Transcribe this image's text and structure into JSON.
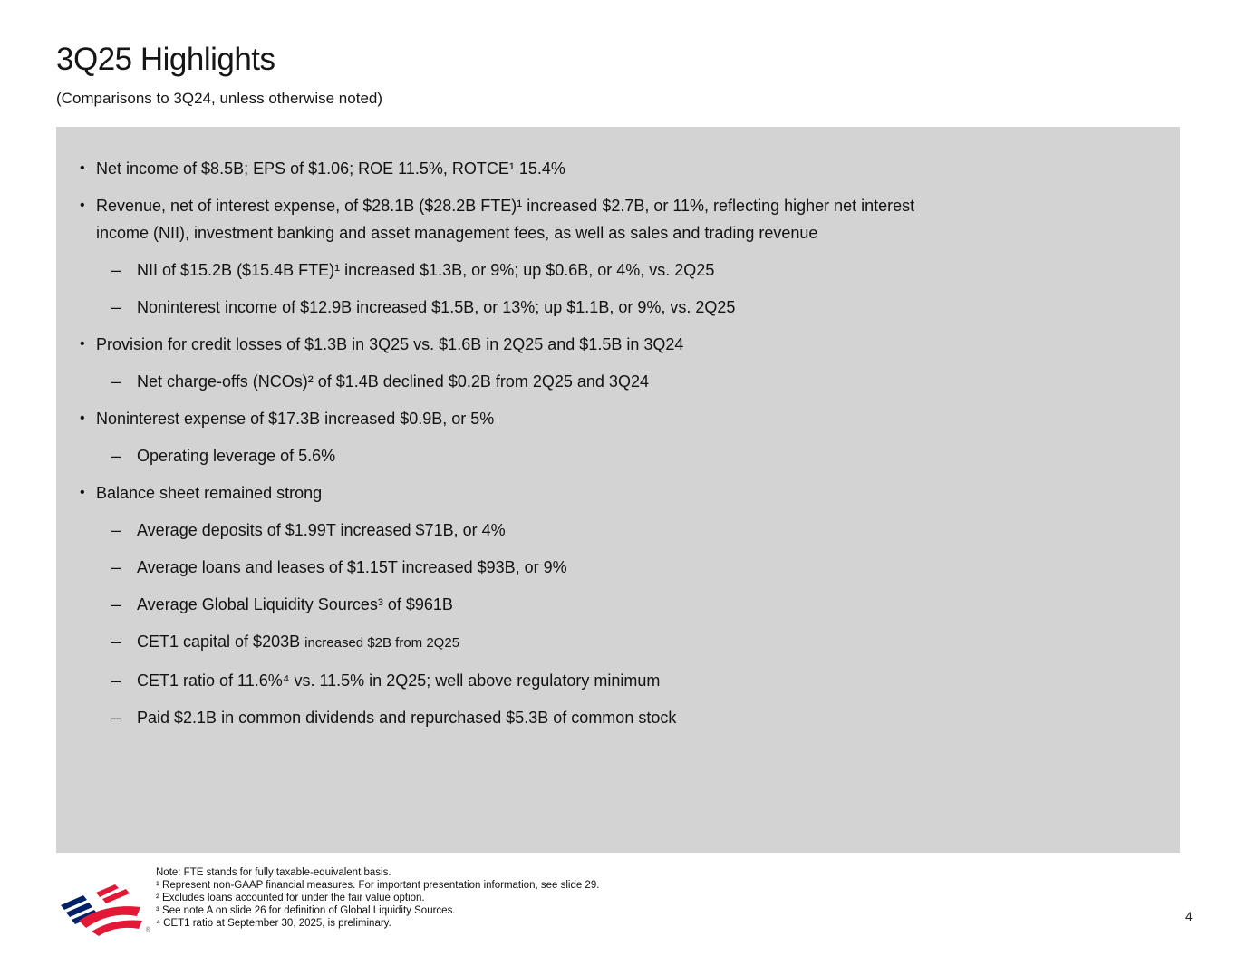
{
  "page": {
    "title": "3Q25 Highlights",
    "subtitle": "(Comparisons to 3Q24, unless otherwise noted)",
    "page_number": "4"
  },
  "colors": {
    "panel_background": "#d3d3d3",
    "text": "#121212",
    "logo_blue": "#012169",
    "logo_red": "#e31837"
  },
  "highlights": {
    "bullets": [
      {
        "level": 1,
        "text": "Net income of $8.5B; EPS of $1.06; ROE 11.5%, ROTCE¹ 15.4%"
      },
      {
        "level": 1,
        "text": "Revenue, net of interest expense, of $28.1B ($28.2B FTE)¹ increased $2.7B, or 11%, reflecting higher net interest\nincome (NII), investment banking and asset management fees, as well as sales and trading revenue"
      },
      {
        "level": 2,
        "text": "NII of $15.2B ($15.4B FTE)¹ increased $1.3B, or 9%; up $0.6B, or 4%, vs. 2Q25"
      },
      {
        "level": 2,
        "text": "Noninterest income of $12.9B increased $1.5B, or 13%; up $1.1B, or 9%, vs. 2Q25"
      },
      {
        "level": 1,
        "text": "Provision for credit losses of $1.3B in 3Q25 vs. $1.6B in 2Q25 and $1.5B in 3Q24"
      },
      {
        "level": 2,
        "text": "Net charge-offs (NCOs)² of $1.4B declined $0.2B from 2Q25 and 3Q24"
      },
      {
        "level": 1,
        "text": "Noninterest expense of $17.3B increased $0.9B, or 5%"
      },
      {
        "level": 2,
        "text": "Operating leverage of 5.6%"
      },
      {
        "level": 1,
        "text": "Balance sheet remained strong"
      },
      {
        "level": 2,
        "text": "Average deposits of $1.99T increased $71B, or 4%"
      },
      {
        "level": 2,
        "text": "Average loans and leases of $1.15T increased $93B, or 9%"
      },
      {
        "level": 2,
        "text": "Average Global Liquidity Sources³ of $961B"
      },
      {
        "level": 2,
        "text": "CET1 capital of $203B ",
        "text_small": "increased $2B from 2Q25"
      },
      {
        "level": 2,
        "text": "CET1 ratio of 11.6%⁴ vs. 11.5% in 2Q25; well above regulatory minimum"
      },
      {
        "level": 2,
        "text": "Paid $2.1B in common dividends and repurchased $5.3B of common stock"
      }
    ]
  },
  "footnotes": {
    "lines": [
      "Note: FTE stands for fully taxable-equivalent basis.",
      "¹ Represent non-GAAP financial measures. For important presentation information, see slide 29.",
      "² Excludes loans accounted for under the fair value option.",
      "³ See note A on slide 26 for definition of Global Liquidity Sources.",
      "⁴ CET1 ratio at September 30, 2025, is preliminary."
    ]
  },
  "logo": {
    "registered_mark": "®"
  }
}
